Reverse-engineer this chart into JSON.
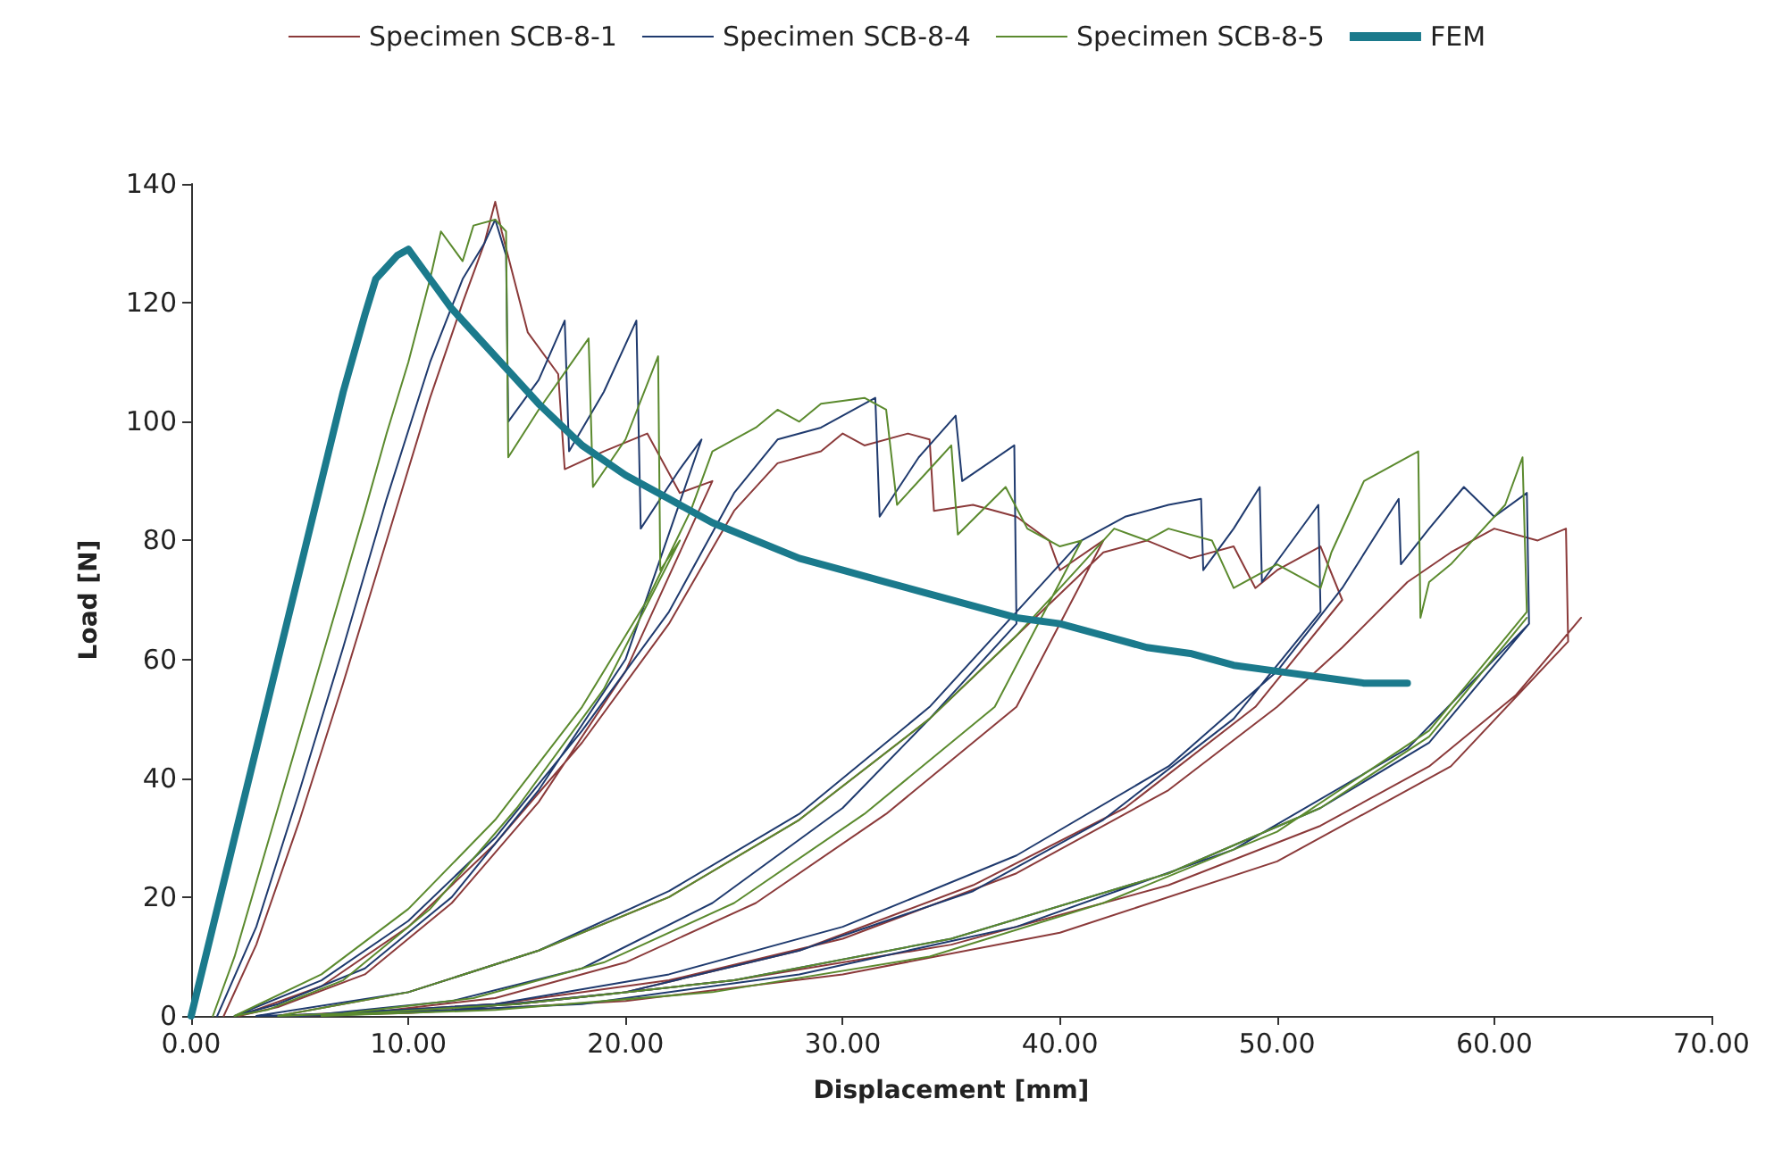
{
  "chart_data": {
    "type": "line",
    "xlabel": "Displacement [mm]",
    "ylabel": "Load [N]",
    "xlim": [
      0,
      70
    ],
    "ylim": [
      0,
      140
    ],
    "xticks": [
      {
        "value": 0,
        "label": "0.00"
      },
      {
        "value": 10,
        "label": "10.00"
      },
      {
        "value": 20,
        "label": "20.00"
      },
      {
        "value": 30,
        "label": "30.00"
      },
      {
        "value": 40,
        "label": "40.00"
      },
      {
        "value": 50,
        "label": "50.00"
      },
      {
        "value": 60,
        "label": "60.00"
      },
      {
        "value": 70,
        "label": "70.00"
      }
    ],
    "yticks": [
      0,
      20,
      40,
      60,
      80,
      100,
      120,
      140
    ],
    "grid": false,
    "legend": "top",
    "marker": "none",
    "line_style": "solid",
    "series": [
      {
        "name": "Specimen SCB-8-1",
        "color": "#8b3a3a",
        "x": [
          1.5,
          3,
          5,
          7,
          9,
          11,
          12.5,
          13.5,
          14,
          14.3,
          15.5,
          16.9,
          17.2,
          19,
          21,
          22.5,
          24,
          20,
          16,
          12,
          8,
          4,
          2.2,
          6,
          10,
          14,
          18,
          22,
          25,
          27,
          29,
          30,
          31,
          33,
          34,
          34.2,
          36,
          38,
          39.5,
          40,
          42,
          38,
          32,
          26,
          20,
          14,
          8,
          4,
          10,
          16,
          22,
          28,
          34,
          38,
          42,
          44,
          46,
          48,
          49,
          50,
          52,
          53,
          49,
          43,
          36,
          28,
          20,
          12,
          5,
          14,
          22,
          30,
          38,
          45,
          50,
          53,
          56,
          58,
          60,
          62,
          63.3,
          63.4,
          58,
          50,
          40,
          30,
          20,
          10,
          4,
          15,
          25,
          35,
          45,
          52,
          57,
          61,
          64
        ],
        "values": [
          0,
          12,
          33,
          56,
          80,
          104,
          120,
          130,
          137,
          132,
          115,
          108,
          92,
          95,
          98,
          88,
          90,
          58,
          36,
          19,
          7,
          1.5,
          0,
          5,
          15,
          29,
          46,
          66,
          85,
          93,
          95,
          98,
          96,
          98,
          97,
          85,
          86,
          84,
          80,
          75,
          80,
          52,
          34,
          19,
          9,
          3,
          0.5,
          0,
          4,
          11,
          20,
          33,
          50,
          64,
          78,
          80,
          77,
          79,
          72,
          75,
          79,
          70,
          52,
          35,
          22,
          11,
          4,
          1,
          0,
          2,
          6,
          13,
          24,
          38,
          52,
          62,
          73,
          78,
          82,
          80,
          82,
          63,
          42,
          26,
          14,
          7,
          2.5,
          0.5,
          0,
          2,
          6,
          12,
          22,
          32,
          42,
          54,
          67
        ]
      },
      {
        "name": "Specimen SCB-8-4",
        "color": "#1f3a6e",
        "x": [
          1.2,
          3,
          5,
          7,
          9,
          11,
          12.5,
          13.5,
          14,
          14.5,
          14.6,
          16,
          17.2,
          17.4,
          19,
          20.5,
          20.7,
          22.5,
          23.5,
          20,
          16,
          12,
          8,
          4,
          2,
          6,
          10,
          14,
          18,
          22,
          25,
          27,
          29,
          31.5,
          31.7,
          33.5,
          35.2,
          35.5,
          37.9,
          38,
          34,
          30,
          24,
          18,
          12,
          6,
          3,
          10,
          16,
          22,
          28,
          34,
          38,
          41,
          43,
          45,
          46.5,
          46.6,
          48,
          49.2,
          49.3,
          51.9,
          52,
          48,
          42,
          36,
          28,
          20,
          12,
          5,
          14,
          22,
          30,
          38,
          45,
          50,
          53,
          55.6,
          55.7,
          57,
          58.6,
          60,
          61.5,
          61.6,
          56,
          48,
          38,
          28,
          18,
          8,
          4,
          15,
          25,
          35,
          45,
          52,
          57,
          61.6
        ],
        "values": [
          0,
          15,
          38,
          62,
          87,
          110,
          124,
          130,
          134,
          128,
          100,
          107,
          117,
          95,
          105,
          117,
          82,
          92,
          97,
          60,
          38,
          20,
          8,
          2,
          0,
          6,
          16,
          30,
          48,
          68,
          88,
          97,
          99,
          104,
          84,
          94,
          101,
          90,
          96,
          66,
          50,
          35,
          19,
          8,
          2.5,
          0.3,
          0,
          4,
          11,
          21,
          34,
          52,
          68,
          80,
          84,
          86,
          87,
          75,
          82,
          89,
          73,
          86,
          68,
          50,
          33,
          21,
          11,
          4,
          1,
          0,
          2,
          7,
          15,
          27,
          42,
          58,
          72,
          87,
          76,
          82,
          89,
          84,
          88,
          66,
          45,
          28,
          15,
          7,
          2,
          0.3,
          0,
          2,
          6,
          13,
          24,
          35,
          46,
          66
        ]
      },
      {
        "name": "Specimen SCB-8-5",
        "color": "#5b8a2e",
        "x": [
          1,
          2,
          4,
          6,
          8,
          9,
          10,
          11,
          11.5,
          12.5,
          13,
          14,
          14.5,
          14.6,
          16,
          18.3,
          18.5,
          20,
          21.5,
          21.6,
          22.5,
          19,
          15,
          11,
          7,
          3.5,
          2,
          6,
          10,
          14,
          18,
          21,
          23,
          24,
          26,
          27,
          28,
          29,
          31,
          32,
          32.5,
          34.5,
          35,
          35.3,
          37.5,
          38.5,
          40,
          41,
          37,
          31,
          25,
          19,
          13,
          7,
          4,
          10,
          16,
          22,
          28,
          34,
          38,
          41,
          42.5,
          44,
          45,
          47,
          48,
          50,
          52,
          52.5,
          54,
          56.5,
          56.6,
          57,
          58,
          59,
          60.5,
          61.3,
          61.5,
          57,
          50,
          42,
          34,
          24,
          14,
          6,
          15,
          25,
          35,
          45,
          52,
          57,
          61.5
        ],
        "values": [
          0,
          10,
          35,
          60,
          85,
          98,
          110,
          124,
          132,
          127,
          133,
          134,
          132,
          94,
          102,
          114,
          89,
          97,
          111,
          75,
          80,
          55,
          35,
          18,
          6,
          1,
          0,
          7,
          18,
          33,
          52,
          70,
          85,
          95,
          99,
          102,
          100,
          103,
          104,
          102,
          86,
          94,
          96,
          81,
          89,
          82,
          79,
          80,
          52,
          34,
          19,
          9,
          3,
          0.4,
          0,
          4,
          11,
          20,
          33,
          50,
          64,
          76,
          82,
          80,
          82,
          80,
          72,
          76,
          72,
          78,
          90,
          95,
          67,
          73,
          76,
          80,
          86,
          94,
          68,
          48,
          31,
          19,
          10,
          4,
          1,
          0,
          2,
          6,
          13,
          24,
          35,
          47,
          67
        ]
      },
      {
        "name": "FEM",
        "color": "#1b7a8c",
        "x": [
          0,
          2,
          4,
          6,
          7,
          8,
          8.5,
          9,
          9.5,
          10,
          11,
          12,
          14,
          16,
          18,
          20,
          22,
          24,
          26,
          28,
          30,
          32,
          34,
          36,
          38,
          40,
          42,
          44,
          46,
          48,
          50,
          52,
          54,
          56
        ],
        "values": [
          0,
          30,
          60,
          90,
          105,
          118,
          124,
          126,
          128,
          129,
          124,
          119,
          111,
          103,
          96,
          91,
          87,
          83,
          80,
          77,
          75,
          73,
          71,
          69,
          67,
          66,
          64,
          62,
          61,
          59,
          58,
          57,
          56,
          56
        ]
      }
    ]
  }
}
